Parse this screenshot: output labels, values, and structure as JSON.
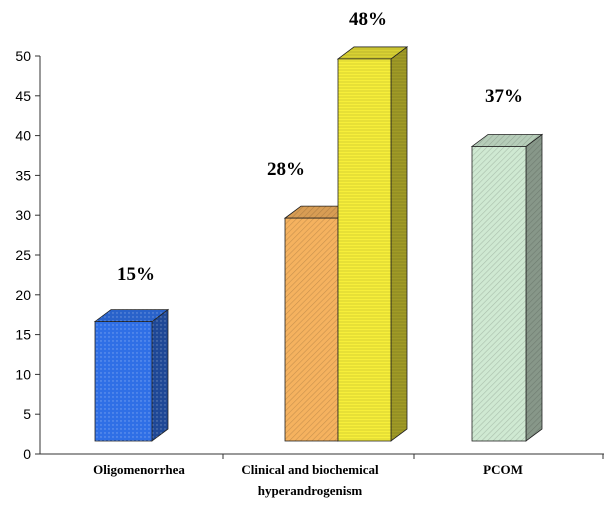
{
  "chart_data": {
    "type": "bar",
    "style": "3d",
    "categories": [
      "Oligomenorrhea",
      "Clinical and biochemical hyperandrogenism",
      "PCOM"
    ],
    "category_label_lines": [
      [
        "Oligomenorrhea"
      ],
      [
        "Clinical and biochemical",
        "hyperandrogenism"
      ],
      [
        "PCOM"
      ]
    ],
    "bars": [
      {
        "category": 0,
        "value": 15,
        "label": "15%",
        "color": "#2f6fe6",
        "pattern": "dots"
      },
      {
        "category": 1,
        "value": 28,
        "label": "28%",
        "color": "#f5b25f",
        "pattern": "diagonal"
      },
      {
        "category": 1,
        "value": 48,
        "label": "48%",
        "color": "#f7ef3a",
        "pattern": "horizontal"
      },
      {
        "category": 2,
        "value": 37,
        "label": "37%",
        "color": "#cfe9d2",
        "pattern": "diagonal"
      }
    ],
    "title": "",
    "xlabel": "",
    "ylabel": "",
    "ylim": [
      0,
      50
    ],
    "yticks": [
      0,
      5,
      10,
      15,
      20,
      25,
      30,
      35,
      40,
      45,
      50
    ],
    "grid": false,
    "legend": "none"
  }
}
